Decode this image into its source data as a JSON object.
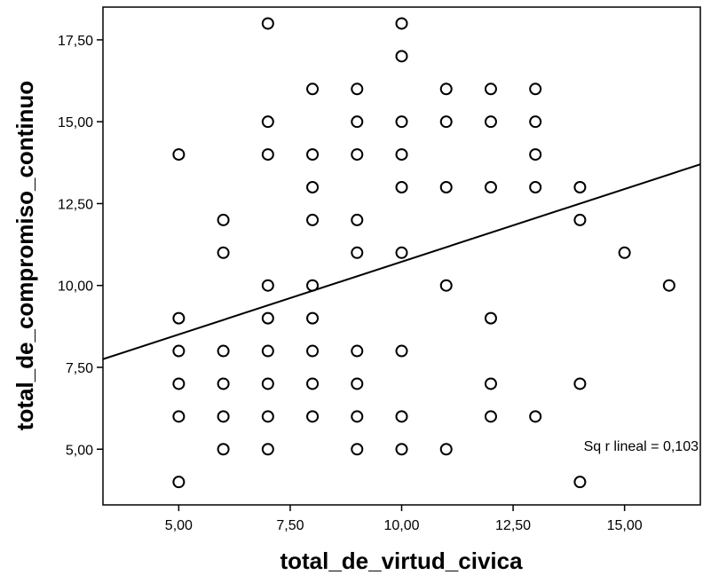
{
  "chart_data": {
    "type": "scatter",
    "xlabel": "total_de_virtud_civica",
    "ylabel": "total_de_compromiso_continuo",
    "xlim": [
      3.3,
      16.7
    ],
    "ylim": [
      3.3,
      18.5
    ],
    "x_ticks": [
      5,
      7.5,
      10,
      12.5,
      15
    ],
    "x_tick_labels": [
      "5,00",
      "7,50",
      "10,00",
      "12,50",
      "15,00"
    ],
    "y_ticks": [
      5,
      7.5,
      10,
      12.5,
      15,
      17.5
    ],
    "y_tick_labels": [
      "5,00",
      "7,50",
      "10,00",
      "12,50",
      "15,00",
      "17,50"
    ],
    "grid": false,
    "fit_line": {
      "type": "linear",
      "x": [
        3.3,
        16.7
      ],
      "y": [
        7.75,
        13.7
      ]
    },
    "annotation": "Sq r lineal = 0,103",
    "points": [
      [
        5,
        14
      ],
      [
        5,
        9
      ],
      [
        5,
        8
      ],
      [
        5,
        7
      ],
      [
        5,
        6
      ],
      [
        5,
        4
      ],
      [
        6,
        12
      ],
      [
        6,
        11
      ],
      [
        6,
        8
      ],
      [
        6,
        7
      ],
      [
        6,
        6
      ],
      [
        6,
        5
      ],
      [
        7,
        18
      ],
      [
        7,
        15
      ],
      [
        7,
        14
      ],
      [
        7,
        10
      ],
      [
        7,
        9
      ],
      [
        7,
        8
      ],
      [
        7,
        7
      ],
      [
        7,
        6
      ],
      [
        7,
        5
      ],
      [
        8,
        16
      ],
      [
        8,
        14
      ],
      [
        8,
        13
      ],
      [
        8,
        12
      ],
      [
        8,
        10
      ],
      [
        8,
        9
      ],
      [
        8,
        8
      ],
      [
        8,
        7
      ],
      [
        8,
        6
      ],
      [
        9,
        16
      ],
      [
        9,
        15
      ],
      [
        9,
        14
      ],
      [
        9,
        12
      ],
      [
        9,
        11
      ],
      [
        9,
        8
      ],
      [
        9,
        7
      ],
      [
        9,
        6
      ],
      [
        9,
        5
      ],
      [
        10,
        18
      ],
      [
        10,
        17
      ],
      [
        10,
        15
      ],
      [
        10,
        14
      ],
      [
        10,
        13
      ],
      [
        10,
        11
      ],
      [
        10,
        8
      ],
      [
        10,
        6
      ],
      [
        10,
        5
      ],
      [
        11,
        16
      ],
      [
        11,
        15
      ],
      [
        11,
        13
      ],
      [
        11,
        10
      ],
      [
        11,
        5
      ],
      [
        12,
        16
      ],
      [
        12,
        15
      ],
      [
        12,
        13
      ],
      [
        12,
        9
      ],
      [
        12,
        7
      ],
      [
        12,
        6
      ],
      [
        13,
        16
      ],
      [
        13,
        15
      ],
      [
        13,
        14
      ],
      [
        13,
        13
      ],
      [
        13,
        6
      ],
      [
        14,
        13
      ],
      [
        14,
        12
      ],
      [
        14,
        7
      ],
      [
        14,
        4
      ],
      [
        15,
        11
      ],
      [
        16,
        10
      ]
    ]
  }
}
